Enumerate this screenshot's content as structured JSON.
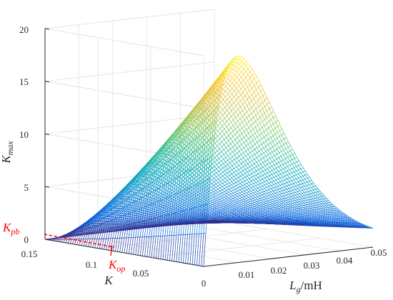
{
  "chart_data": {
    "type": "surface",
    "xlabel": "K",
    "zlabel": "K",
    "zlabel_sub": "max",
    "ylabel": "L",
    "ylabel_sub": "g",
    "ylabel_unit": "/mH",
    "x_ticks": [
      "0.15",
      "0.1",
      "0.05",
      "0"
    ],
    "y_ticks": [
      "00",
      "0.01",
      "0.02",
      "0.03",
      "0.04",
      "0.05"
    ],
    "z_ticks": [
      "0",
      "5",
      "10",
      "15",
      "20"
    ],
    "xlim": [
      0,
      0.15
    ],
    "ylim": [
      0,
      0.05
    ],
    "zlim": [
      0,
      20
    ],
    "peak": {
      "K": 0,
      "Lg": 0.01,
      "Kmax": 19.6
    },
    "colormap": "parula",
    "grid": true,
    "annotations": [
      {
        "label": "K",
        "sub": "pb",
        "color": "#ff0000",
        "value_Kmax": 1.0
      },
      {
        "label": "K",
        "sub": "op",
        "color": "#ff0000",
        "value_K": 0.105
      }
    ]
  }
}
